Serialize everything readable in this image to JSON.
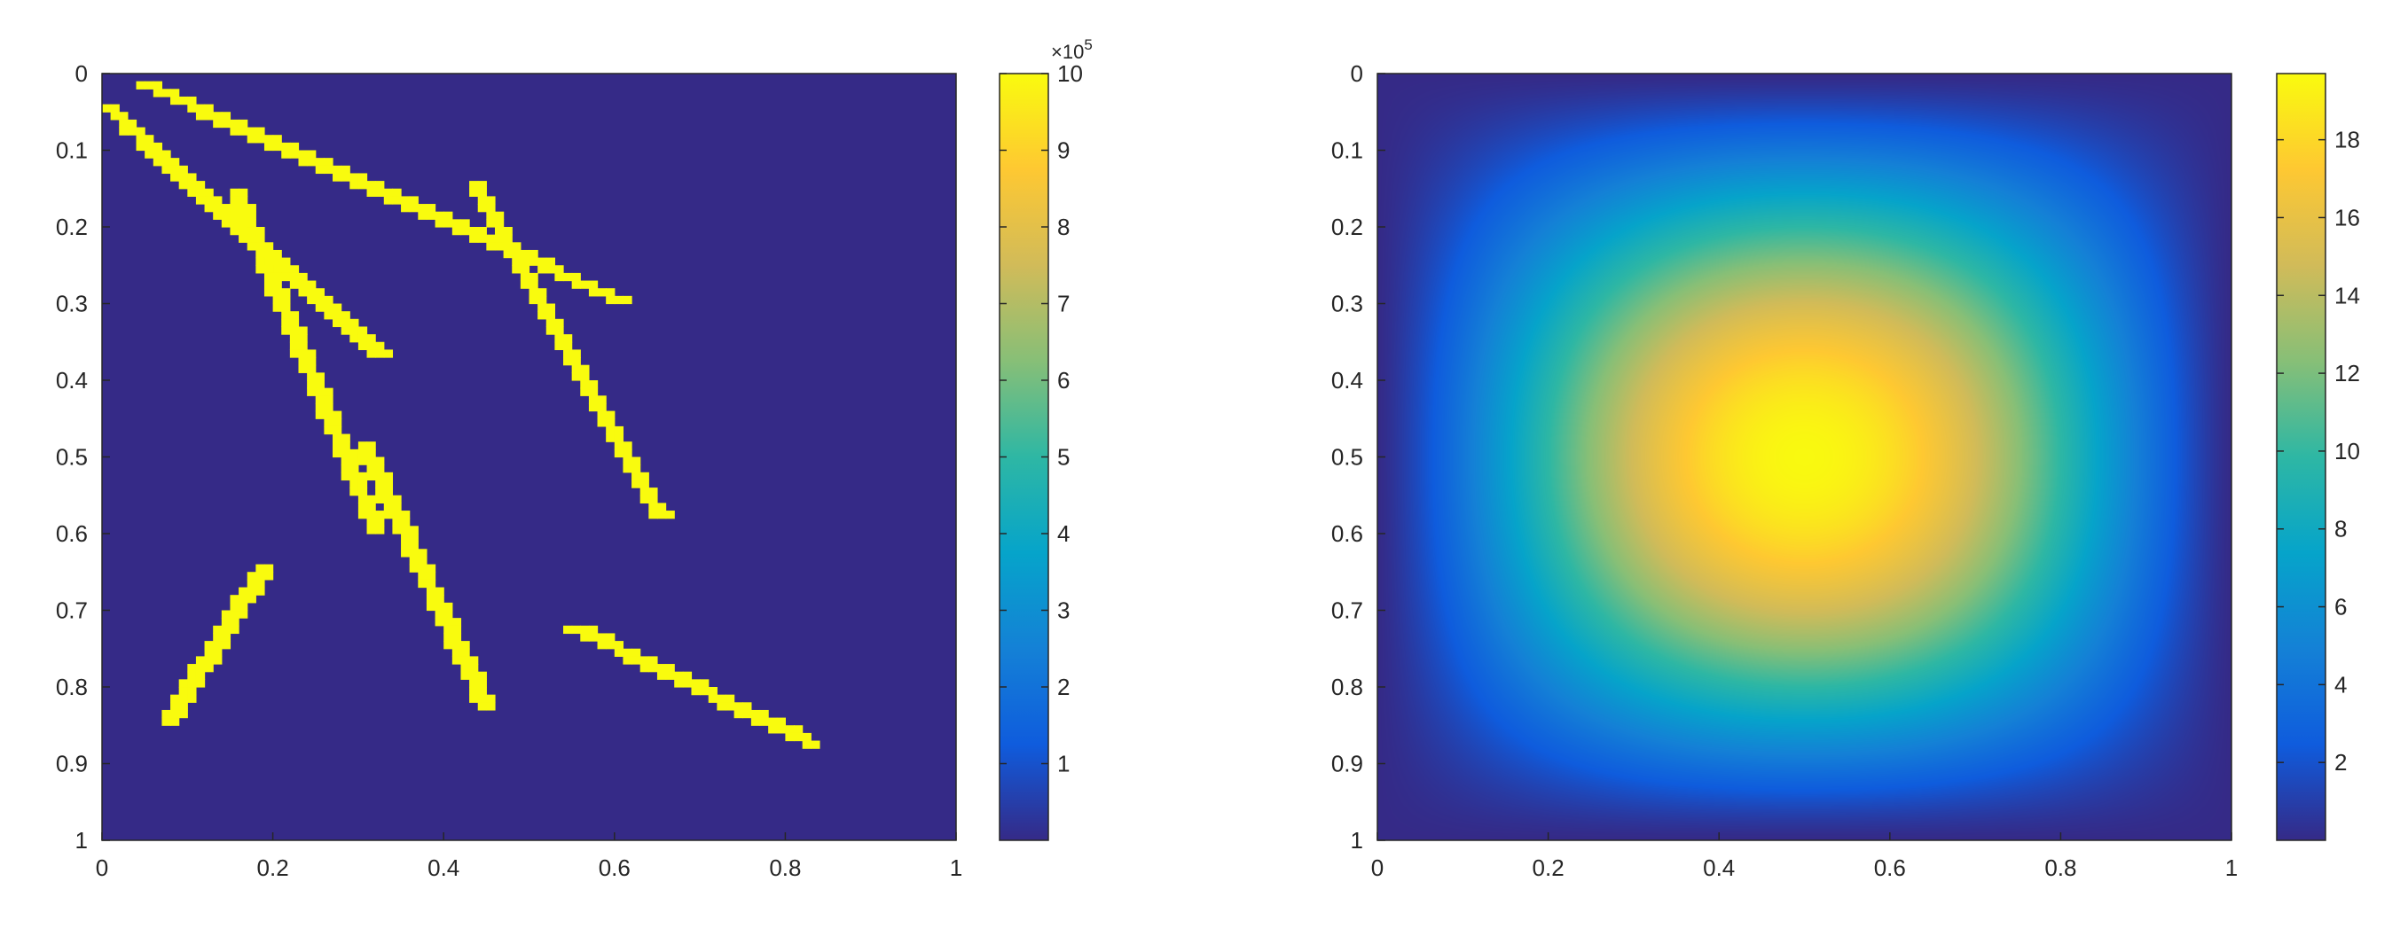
{
  "chart_data": [
    {
      "type": "heatmap",
      "title": "",
      "xlabel": "",
      "ylabel": "",
      "xlim": [
        0,
        1
      ],
      "ylim": [
        0,
        1
      ],
      "y_direction": "reversed",
      "x_ticks": [
        "0",
        "0.2",
        "0.4",
        "0.6",
        "0.8",
        "1"
      ],
      "y_ticks": [
        "0",
        "0.1",
        "0.2",
        "0.3",
        "0.4",
        "0.5",
        "0.6",
        "0.7",
        "0.8",
        "0.9",
        "1"
      ],
      "colormap": "parula",
      "background_value": 0,
      "colorbar": {
        "range": [
          0,
          1000000
        ],
        "ticks": [
          "1",
          "2",
          "3",
          "4",
          "5",
          "6",
          "7",
          "8",
          "9",
          "10"
        ],
        "multiplier_base": "×10",
        "multiplier_exp": "5"
      },
      "line_value": 1000000,
      "segments": [
        {
          "x1": 0.04,
          "y1": 0.01,
          "x2": 0.6,
          "y2": 0.295
        },
        {
          "x1": 0.0,
          "y1": 0.04,
          "x2": 0.32,
          "y2": 0.365
        },
        {
          "x1": 0.15,
          "y1": 0.15,
          "x2": 0.315,
          "y2": 0.59
        },
        {
          "x1": 0.43,
          "y1": 0.14,
          "x2": 0.65,
          "y2": 0.58
        },
        {
          "x1": 0.3,
          "y1": 0.48,
          "x2": 0.445,
          "y2": 0.825
        },
        {
          "x1": 0.075,
          "y1": 0.84,
          "x2": 0.185,
          "y2": 0.645
        },
        {
          "x1": 0.545,
          "y1": 0.72,
          "x2": 0.82,
          "y2": 0.87
        }
      ]
    },
    {
      "type": "heatmap",
      "title": "",
      "xlabel": "",
      "ylabel": "",
      "xlim": [
        0,
        1
      ],
      "ylim": [
        0,
        1
      ],
      "y_direction": "reversed",
      "x_ticks": [
        "0",
        "0.2",
        "0.4",
        "0.6",
        "0.8",
        "1"
      ],
      "y_ticks": [
        "0",
        "0.1",
        "0.2",
        "0.3",
        "0.4",
        "0.5",
        "0.6",
        "0.7",
        "0.8",
        "0.9",
        "1"
      ],
      "colormap": "parula",
      "field": "bump",
      "center": [
        0.5,
        0.5
      ],
      "value_range": [
        0,
        19.7
      ],
      "peak_value": 19.6,
      "colorbar": {
        "range": [
          0,
          19.7
        ],
        "ticks": [
          "2",
          "4",
          "6",
          "8",
          "10",
          "12",
          "14",
          "16",
          "18"
        ]
      }
    }
  ]
}
